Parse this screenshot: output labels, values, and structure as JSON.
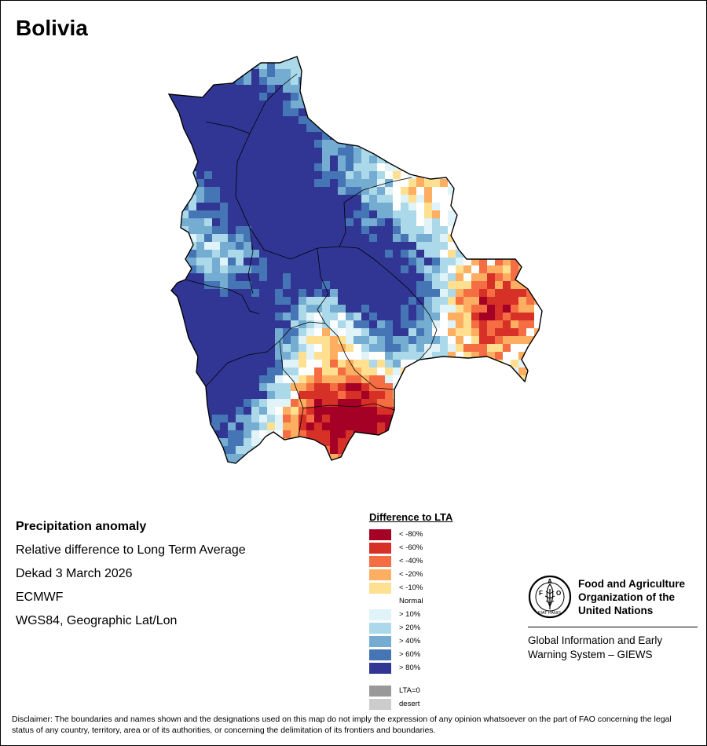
{
  "title": "Bolivia",
  "info": {
    "heading": "Precipitation anomaly",
    "line1": "Relative difference to Long Term Average",
    "line2": "Dekad 3 March 2026",
    "line3": "ECMWF",
    "line4": "WGS84, Geographic Lat/Lon"
  },
  "legend": {
    "title": "Difference to LTA",
    "classes": [
      {
        "label": "< -80%",
        "color": "#a50026"
      },
      {
        "label": "< -60%",
        "color": "#d73027"
      },
      {
        "label": "< -40%",
        "color": "#f46d43"
      },
      {
        "label": "< -20%",
        "color": "#fdae61"
      },
      {
        "label": "< -10%",
        "color": "#fee090"
      },
      {
        "label": "Normal",
        "color": "#ffffff"
      },
      {
        "label": "> 10%",
        "color": "#e0f3f8"
      },
      {
        "label": "> 20%",
        "color": "#abd9e9"
      },
      {
        "label": "> 40%",
        "color": "#74add1"
      },
      {
        "label": "> 60%",
        "color": "#4575b4"
      },
      {
        "label": "> 80%",
        "color": "#313695"
      }
    ],
    "extra": [
      {
        "label": "LTA=0",
        "color": "#999999"
      },
      {
        "label": "desert",
        "color": "#cccccc"
      }
    ]
  },
  "logo": {
    "letters": "FAO",
    "motto": "FIAT PANIS",
    "org_line1": "Food and Agriculture",
    "org_line2": "Organization of the",
    "org_line3": "United Nations",
    "giews_line1": "Global Information and Early",
    "giews_line2": "Warning System – GIEWS"
  },
  "disclaimer": "Disclaimer: The boundaries and names shown and the designations used on this map do not imply the expression of any opinion whatsoever on the part of FAO concerning the legal status of any country, territory, area or of its authorities, or concerning the delimitation of its frontiers and boundaries."
}
